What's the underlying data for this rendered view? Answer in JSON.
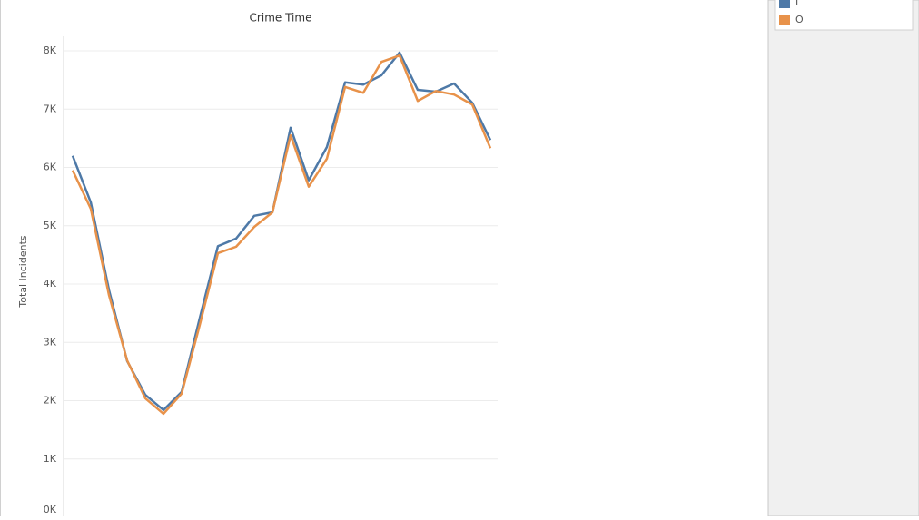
{
  "chart_data": {
    "type": "line",
    "title": "Crime Time",
    "y_label": "Total Incidents",
    "categories": [
      null,
      null,
      null,
      null,
      null,
      null,
      null,
      null,
      null,
      null,
      null,
      null,
      null,
      null,
      null,
      null,
      null,
      null,
      null,
      null,
      null,
      null,
      null,
      null
    ],
    "series": [
      {
        "name": "I",
        "color": "#4e79a7",
        "values": [
          6200,
          5400,
          3900,
          2680,
          2100,
          1840,
          2150,
          3420,
          4650,
          4780,
          5170,
          5230,
          6680,
          5780,
          6350,
          7460,
          7420,
          7580,
          7970,
          7330,
          7300,
          7440,
          7110,
          6470
        ]
      },
      {
        "name": "O",
        "color": "#e8924a",
        "values": [
          5950,
          5290,
          3810,
          2690,
          2040,
          1775,
          2120,
          3300,
          4530,
          4640,
          4980,
          5230,
          6550,
          5670,
          6150,
          7380,
          7280,
          7810,
          7920,
          7140,
          7310,
          7250,
          7080,
          6330
        ]
      }
    ],
    "ylim": [
      0,
      8000
    ],
    "yticks": [
      {
        "value": 0,
        "label": "0K"
      },
      {
        "value": 1000,
        "label": "1K"
      },
      {
        "value": 2000,
        "label": "2K"
      },
      {
        "value": 3000,
        "label": "3K"
      },
      {
        "value": 4000,
        "label": "4K"
      },
      {
        "value": 5000,
        "label": "5K"
      },
      {
        "value": 6000,
        "label": "6K"
      },
      {
        "value": 7000,
        "label": "7K"
      },
      {
        "value": 8000,
        "label": "8K"
      }
    ],
    "grid": true
  }
}
